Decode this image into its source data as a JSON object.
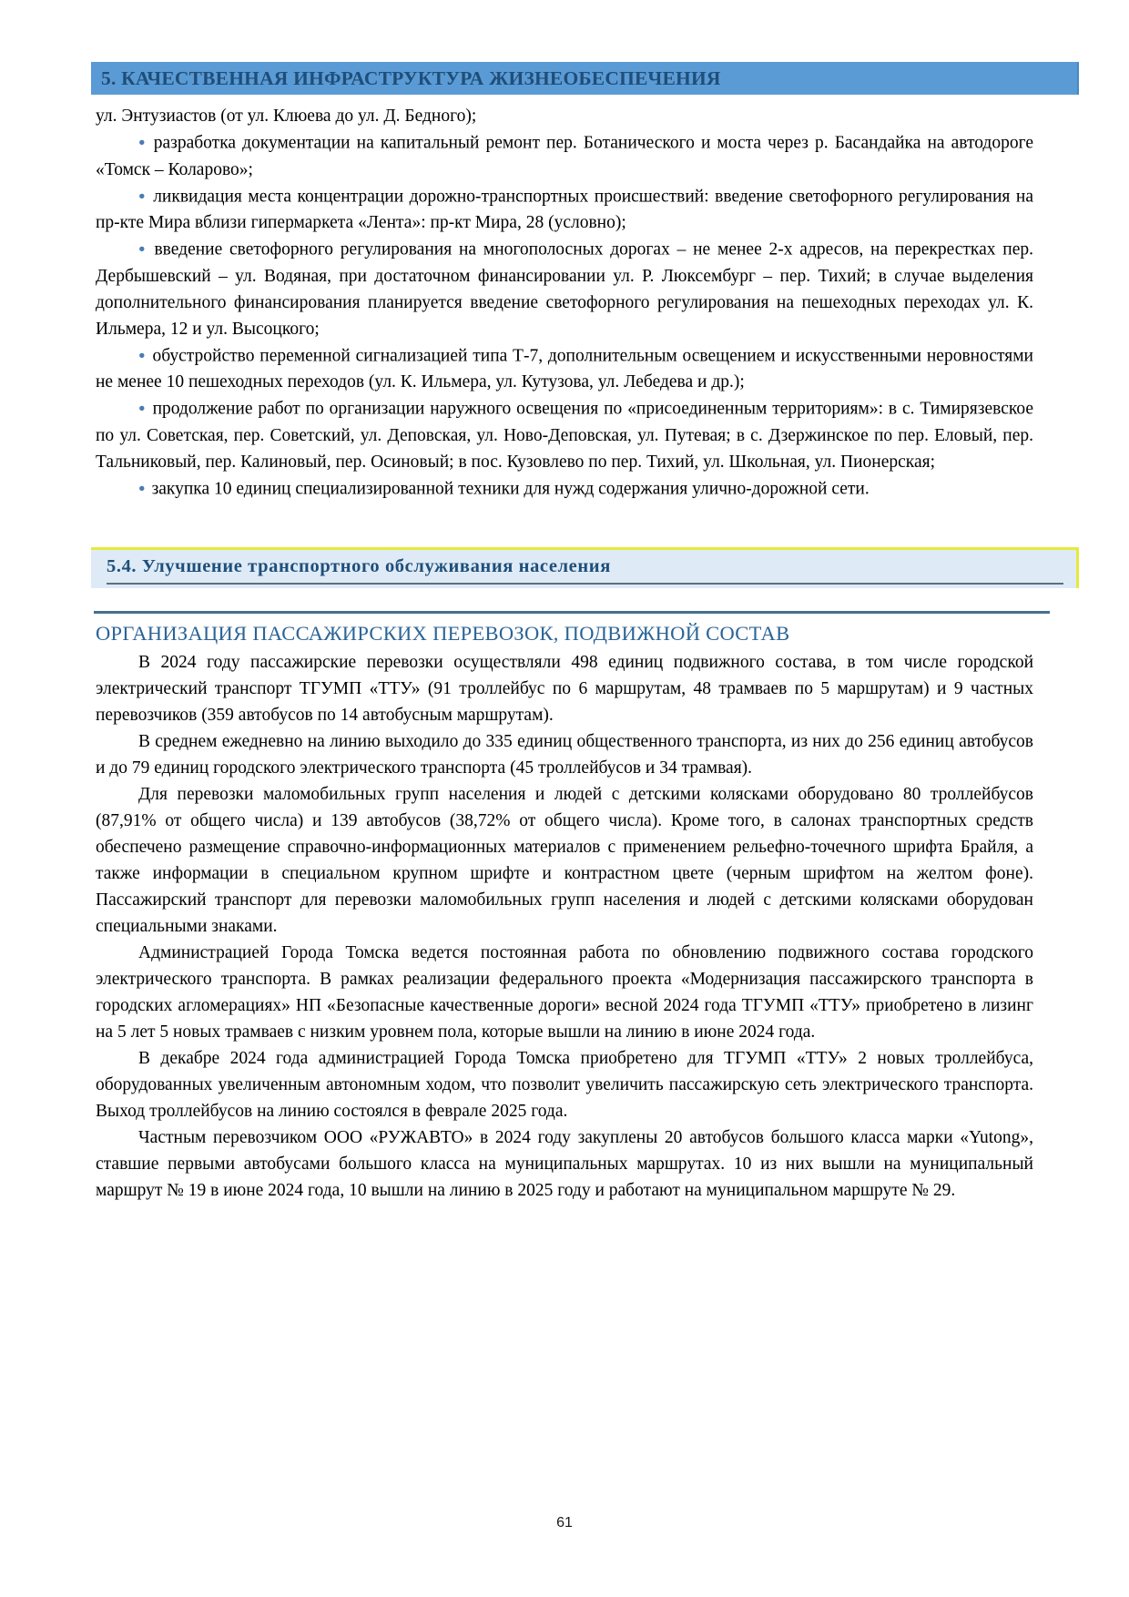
{
  "colors": {
    "banner_bg": "#5b9bd5",
    "banner_text": "#1f4e79",
    "section_box_bg": "#deebf7",
    "section_box_border": "#e6e93c",
    "section_text": "#1f4e79",
    "subsection_text": "#2a6496",
    "divider": "#44708d",
    "bullet": "#4a7cb5"
  },
  "icons": {
    "bullet_glyph": "●"
  },
  "document": {
    "chapter_banner": "5. КАЧЕСТВЕННАЯ ИНФРАСТРУКТУРА ЖИЗНЕОБЕСПЕЧЕНИЯ",
    "continuation_line": "ул. Энтузиастов (от ул. Клюева до ул. Д. Бедного);",
    "bullets": [
      "разработка документации на капитальный ремонт пер. Ботанического и моста через р. Басандайка на автодороге «Томск – Коларово»;",
      "ликвидация места концентрации дорожно-транспортных происшествий: введение светофорного регулирования на пр-кте Мира вблизи гипермаркета «Лента»: пр-кт Мира, 28 (условно);",
      "введение светофорного регулирования на многополосных дорогах – не менее 2-х адресов, на перекрестках пер. Дербышевский – ул. Водяная, при достаточном финансировании ул. Р. Люксембург – пер. Тихий; в случае выделения дополнительного финансирования планируется введение светофорного регулирования на пешеходных переходах ул. К. Ильмера, 12 и ул. Высоцкого;",
      "обустройство переменной сигнализацией типа Т-7, дополнительным освещением и искусственными неровностями не менее 10 пешеходных переходов (ул. К. Ильмера, ул. Кутузова, ул. Лебедева и др.);",
      "продолжение работ по организации наружного освещения по «присоединенным территориям»: в с. Тимирязевское по ул. Советская, пер. Советский, ул. Деповская, ул. Ново-Деповская, ул. Путевая; в с. Дзержинское по пер. Еловый, пер. Тальниковый, пер. Калиновый, пер. Осиновый; в пос. Кузовлево по пер. Тихий, ул. Школьная, ул. Пионерская;",
      "закупка 10 единиц специализированной техники для нужд содержания улично-дорожной сети."
    ],
    "section_header": "5.4. Улучшение транспортного обслуживания населения",
    "subsection_title": "ОРГАНИЗАЦИЯ ПАССАЖИРСКИХ ПЕРЕВОЗОК, ПОДВИЖНОЙ СОСТАВ",
    "paragraphs": [
      "В 2024 году пассажирские перевозки осуществляли 498 единиц подвижного состава, в том числе городской электрический транспорт ТГУМП «ТТУ» (91 троллейбус по 6 маршрутам, 48 трамваев по 5 маршрутам) и 9 частных перевозчиков (359 автобусов по 14 автобусным маршрутам).",
      "В среднем ежедневно на линию выходило до 335 единиц общественного транспорта, из них до 256 единиц автобусов и до 79 единиц городского электрического транспорта (45 троллейбусов и 34 трамвая).",
      "Для перевозки маломобильных групп населения и людей с детскими колясками оборудовано 80 троллейбусов (87,91% от общего числа) и 139 автобусов (38,72% от общего числа). Кроме того, в салонах транспортных средств обеспечено размещение справочно-информационных материалов с применением рельефно-точечного шрифта Брайля, а также информации в специальном крупном шрифте и контрастном цвете (черным шрифтом на желтом фоне). Пассажирский транспорт для перевозки маломобильных групп населения и людей с детскими колясками оборудован специальными знаками.",
      "Администрацией Города Томска ведется постоянная работа по обновлению подвижного состава городского электрического транспорта. В рамках реализации федерального проекта «Модернизация пассажирского транспорта в городских агломерациях» НП «Безопасные качественные дороги» весной 2024 года ТГУМП «ТТУ» приобретено в лизинг на 5 лет 5 новых трамваев с низким уровнем пола, которые вышли на линию в июне 2024 года.",
      "В декабре 2024 года администрацией Города Томска приобретено для ТГУМП «ТТУ» 2 новых троллейбуса, оборудованных увеличенным автономным ходом, что позволит увеличить пассажирскую сеть электрического транспорта. Выход троллейбусов на линию состоялся в феврале 2025 года.",
      "Частным перевозчиком ООО «РУЖАВТО» в 2024 году закуплены 20 автобусов большого класса марки «Yutong», ставшие первыми автобусами большого класса на муниципальных маршрутах. 10 из них вышли на муниципальный маршрут № 19 в июне 2024 года, 10 вышли на линию в 2025 году и работают на муниципальном маршруте № 29."
    ],
    "page_number": "61"
  }
}
